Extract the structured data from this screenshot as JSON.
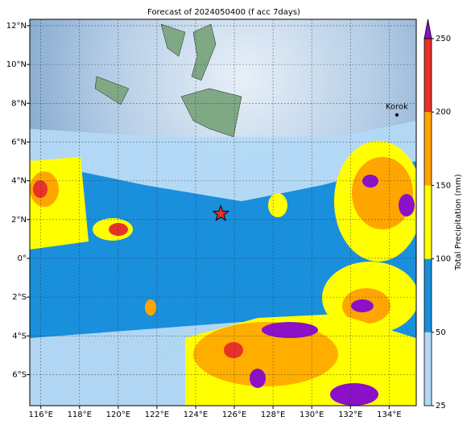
{
  "map": {
    "title": "Forecast of 2024050400 (f acc 7days)",
    "xlim": [
      115.43,
      135.4
    ],
    "ylim": [
      -7.6,
      12.33
    ],
    "xticks": [
      {
        "value": 116,
        "label": "116°E"
      },
      {
        "value": 118,
        "label": "118°E"
      },
      {
        "value": 120,
        "label": "120°E"
      },
      {
        "value": 122,
        "label": "122°E"
      },
      {
        "value": 124,
        "label": "124°E"
      },
      {
        "value": 126,
        "label": "126°E"
      },
      {
        "value": 128,
        "label": "128°E"
      },
      {
        "value": 130,
        "label": "130°E"
      },
      {
        "value": 132,
        "label": "132°E"
      },
      {
        "value": 134,
        "label": "134°E"
      }
    ],
    "yticks": [
      {
        "value": 12,
        "label": "12°N"
      },
      {
        "value": 10,
        "label": "10°N"
      },
      {
        "value": 8,
        "label": "8°N"
      },
      {
        "value": 6,
        "label": "6°N"
      },
      {
        "value": 4,
        "label": "4°N"
      },
      {
        "value": 2,
        "label": "2°N"
      },
      {
        "value": 0,
        "label": "0°"
      },
      {
        "value": -2,
        "label": "2°S"
      },
      {
        "value": -4,
        "label": "4°S"
      },
      {
        "value": -6,
        "label": "6°S"
      }
    ],
    "grid": true,
    "place": {
      "label": "Korok",
      "lon": 134.4,
      "lat": 7.4
    },
    "marker": {
      "lon": 125.3,
      "lat": 2.3,
      "color": "#e8312a"
    },
    "colorbar": {
      "label": "Total Precipitation (mm)",
      "ticks": [
        25,
        50,
        100,
        150,
        200,
        250
      ],
      "colors": [
        "#b3d9f7",
        "#1a8fdc",
        "#ffff00",
        "#ffa500",
        "#e8312a"
      ],
      "extend_color": "#8b10c8"
    }
  }
}
